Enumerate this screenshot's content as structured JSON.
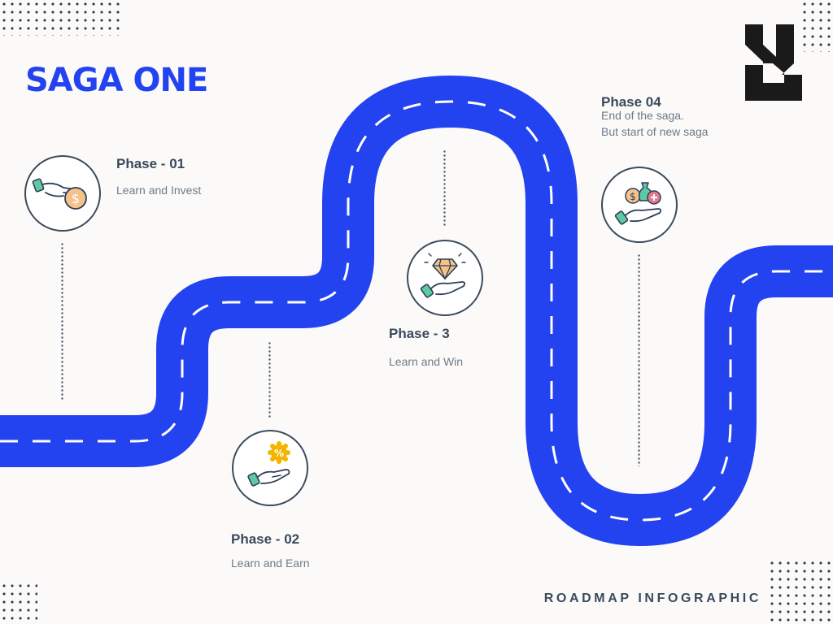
{
  "title": "SAGA ONE",
  "footer": "ROADMAP INFOGRAPHIC",
  "colors": {
    "road": "#2443f0",
    "road_dash": "#ffffff",
    "text_dark": "#3a4a5c",
    "text_muted": "#6c7a88",
    "logo": "#1a1a1a",
    "background": "#fbfaf8"
  },
  "phases": [
    {
      "title": "Phase - 01",
      "desc": "Learn and Invest",
      "icon": "hand-coin-icon"
    },
    {
      "title": "Phase - 02",
      "desc": "Learn and Earn",
      "icon": "hand-percent-icon"
    },
    {
      "title": "Phase - 3",
      "desc": "Learn and Win",
      "icon": "hand-diamond-icon"
    },
    {
      "title": "Phase 04",
      "desc_line1": "End of the saga.",
      "desc_line2": "But start of new saga",
      "icon": "hand-money-bags-icon"
    }
  ]
}
